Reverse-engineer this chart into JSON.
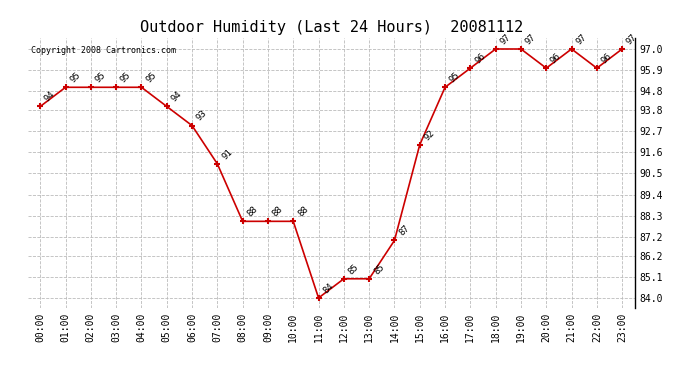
{
  "title": "Outdoor Humidity (Last 24 Hours)  20081112",
  "copyright": "Copyright 2008 Cartronics.com",
  "x_labels": [
    "00:00",
    "01:00",
    "02:00",
    "03:00",
    "04:00",
    "05:00",
    "06:00",
    "07:00",
    "08:00",
    "09:00",
    "10:00",
    "11:00",
    "12:00",
    "13:00",
    "14:00",
    "15:00",
    "16:00",
    "17:00",
    "18:00",
    "19:00",
    "20:00",
    "21:00",
    "22:00",
    "23:00"
  ],
  "y_values": [
    94,
    95,
    95,
    95,
    95,
    94,
    93,
    91,
    88,
    88,
    88,
    84,
    85,
    85,
    87,
    92,
    95,
    96,
    97,
    97,
    96,
    97,
    96,
    97
  ],
  "y_labels": [
    84.0,
    85.1,
    86.2,
    87.2,
    88.3,
    89.4,
    90.5,
    91.6,
    92.7,
    93.8,
    94.8,
    95.9,
    97.0
  ],
  "y_label_strs": [
    "84.0",
    "85.1",
    "86.2",
    "87.2",
    "88.3",
    "89.4",
    "90.5",
    "91.6",
    "92.7",
    "93.8",
    "94.8",
    "95.9",
    "97.0"
  ],
  "ylim": [
    83.5,
    97.6
  ],
  "line_color": "#cc0000",
  "marker_color": "#cc0000",
  "bg_color": "#ffffff",
  "grid_color": "#bbbbbb",
  "title_fontsize": 11,
  "label_fontsize": 7,
  "annotation_fontsize": 6.5,
  "copyright_fontsize": 6
}
